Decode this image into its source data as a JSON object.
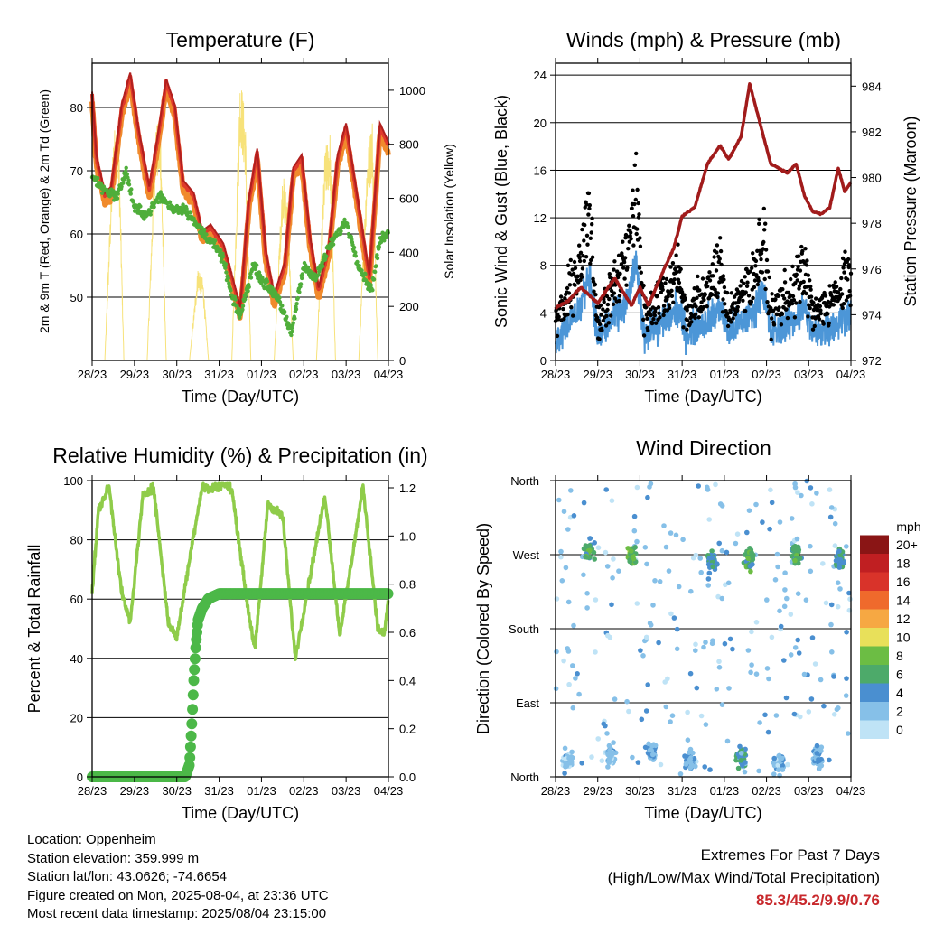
{
  "colors": {
    "temp_9m": "#e03a2b",
    "temp_2m": "#f08a2c",
    "temp_dark": "#b0201f",
    "dewpoint": "#4fae3a",
    "solar": "#f7e27a",
    "wind": "#4c96d7",
    "gust": "#000000",
    "pressure": "#a11b1b",
    "rh": "#8fcc4a",
    "precip": "#4cb848",
    "extremes_value": "#c8282c"
  },
  "time_axis": {
    "ticks": [
      "28/23",
      "29/23",
      "30/23",
      "31/23",
      "01/23",
      "02/23",
      "03/23",
      "04/23"
    ],
    "label": "Time (Day/UTC)"
  },
  "temperature_panel": {
    "title": "Temperature (F)",
    "left_label": "2m & 9m T (Red, Orange) & 2m Td (Green)",
    "right_label": "Solar Insolation (Yellow)",
    "left_ticks": [
      "50",
      "60",
      "70",
      "80"
    ],
    "right_ticks": [
      "0",
      "200",
      "400",
      "600",
      "800",
      "1000"
    ]
  },
  "winds_panel": {
    "title": "Winds (mph) & Pressure (mb)",
    "left_label": "Sonic Wind & Gust (Blue, Black)",
    "right_label": "Station Pressure (Maroon)",
    "left_ticks": [
      "0",
      "4",
      "8",
      "12",
      "16",
      "20",
      "24"
    ],
    "right_ticks": [
      "972",
      "974",
      "976",
      "978",
      "980",
      "982",
      "984"
    ]
  },
  "humidity_panel": {
    "title": "Relative Humidity (%) & Precipitation (in)",
    "left_label": "Percent & Total Rainfall",
    "left_ticks": [
      "0",
      "20",
      "40",
      "60",
      "80",
      "100"
    ],
    "right_ticks": [
      "0.0",
      "0.2",
      "0.4",
      "0.6",
      "0.8",
      "1.0",
      "1.2"
    ]
  },
  "direction_panel": {
    "title": "Wind Direction",
    "left_label": "Direction (Colored By Speed)",
    "dir_ticks": [
      "North",
      "East",
      "South",
      "West",
      "North"
    ],
    "legend_title": "mph",
    "legend_labels": [
      "0",
      "2",
      "4",
      "6",
      "8",
      "10",
      "12",
      "14",
      "16",
      "18",
      "20+"
    ],
    "legend_colors": [
      "#bfe3f6",
      "#86c0e8",
      "#4a8fd0",
      "#4daa6a",
      "#6cbd44",
      "#e8e05a",
      "#f6a843",
      "#ef6a2c",
      "#d9332a",
      "#c01f22",
      "#8a1515"
    ]
  },
  "station_info": {
    "location": "Location: Oppenheim",
    "elevation": "Station elevation: 359.999 m",
    "latlon": "Station lat/lon: 43.0626; -74.6654",
    "created": "Figure created on Mon, 2025-08-04, at 23:36 UTC",
    "recent": "Most recent data timestamp: 2025/08/04 23:15:00"
  },
  "extremes": {
    "title": "Extremes For Past 7 Days",
    "subtitle": "(High/Low/Max Wind/Total Precipitation)",
    "value": "85.3/45.2/9.9/0.76"
  },
  "chart_data": [
    {
      "type": "line",
      "title": "Temperature (F)",
      "xlabel": "Time (Day/UTC)",
      "ylabel": "2m & 9m T (Red, Orange) & 2m Td (Green)",
      "ylabel_right": "Solar Insolation (Yellow)",
      "x_unit": "days since 28/23",
      "xlim": [
        0,
        7
      ],
      "ylim": [
        40,
        87
      ],
      "ylim_right": [
        0,
        1100
      ],
      "series": [
        {
          "name": "2m & 9m T (Red, Orange)",
          "axis": "left",
          "x": [
            0,
            0.1,
            0.3,
            0.45,
            0.7,
            0.9,
            1.1,
            1.35,
            1.55,
            1.75,
            1.95,
            2.15,
            2.4,
            2.6,
            2.8,
            3.1,
            3.5,
            3.7,
            3.9,
            4.1,
            4.3,
            4.55,
            4.75,
            4.95,
            5.15,
            5.35,
            5.6,
            5.8,
            6.0,
            6.3,
            6.55,
            6.8,
            7.0
          ],
          "y": [
            82,
            72,
            66,
            67,
            80,
            85,
            76,
            67,
            75,
            84,
            80,
            68,
            66,
            60,
            61,
            58,
            48,
            65,
            73,
            57,
            50,
            55,
            70,
            72,
            59,
            51,
            58,
            72,
            77,
            64,
            53,
            77,
            74
          ]
        },
        {
          "name": "2m Td (Green)",
          "axis": "left",
          "x": [
            0,
            0.3,
            0.6,
            0.8,
            1.0,
            1.3,
            1.6,
            1.9,
            2.2,
            2.5,
            2.8,
            3.1,
            3.3,
            3.5,
            3.8,
            4.1,
            4.4,
            4.7,
            5.0,
            5.3,
            5.6,
            6.0,
            6.3,
            6.6,
            6.8,
            7.0
          ],
          "y": [
            69,
            67,
            66,
            70,
            64,
            63,
            66,
            64,
            64,
            61,
            59,
            56,
            50,
            47,
            55,
            52,
            50,
            44,
            55,
            53,
            58,
            62,
            55,
            51,
            59,
            60
          ]
        },
        {
          "name": "Solar Insolation (Yellow)",
          "axis": "right",
          "x": [
            0.3,
            0.5,
            0.62,
            0.75,
            1.3,
            1.5,
            1.62,
            1.75,
            2.3,
            2.5,
            2.62,
            2.75,
            3.3,
            3.5,
            3.62,
            3.75,
            4.3,
            4.5,
            4.62,
            4.75,
            5.3,
            5.5,
            5.62,
            5.75,
            6.3,
            6.5,
            6.62,
            6.75
          ],
          "y": [
            0,
            850,
            900,
            0,
            0,
            900,
            850,
            0,
            0,
            350,
            300,
            0,
            0,
            1070,
            900,
            0,
            0,
            700,
            600,
            0,
            0,
            780,
            850,
            0,
            0,
            780,
            900,
            0
          ]
        }
      ]
    },
    {
      "type": "line",
      "title": "Winds (mph) & Pressure (mb)",
      "xlabel": "Time (Day/UTC)",
      "ylabel": "Sonic Wind & Gust (Blue, Black)",
      "ylabel_right": "Station Pressure (Maroon)",
      "x_unit": "days since 28/23",
      "xlim": [
        0,
        7
      ],
      "ylim": [
        0,
        25
      ],
      "ylim_right": [
        972,
        985
      ],
      "series": [
        {
          "name": "Station Pressure (Maroon)",
          "axis": "right",
          "x": [
            0,
            0.3,
            0.6,
            1.0,
            1.4,
            1.8,
            2.0,
            2.2,
            2.5,
            2.8,
            3.0,
            3.3,
            3.6,
            3.9,
            4.1,
            4.4,
            4.6,
            4.9,
            5.1,
            5.3,
            5.5,
            5.7,
            5.9,
            6.1,
            6.3,
            6.5,
            6.7,
            6.85,
            7.0
          ],
          "y": [
            974.3,
            974.6,
            975.2,
            974.5,
            975.6,
            974.4,
            975.2,
            974.4,
            975.7,
            976.9,
            978.3,
            978.7,
            980.6,
            981.4,
            980.8,
            981.8,
            984.1,
            982.0,
            980.6,
            980.4,
            980.2,
            980.6,
            979.2,
            978.5,
            978.4,
            978.7,
            980.4,
            979.4,
            979.8
          ]
        },
        {
          "name": "Sonic Wind & Gust (Blue, Black)",
          "axis": "left",
          "x": [
            0,
            0.6,
            0.8,
            1.0,
            1.7,
            1.9,
            2.1,
            2.7,
            2.9,
            3.1,
            3.7,
            3.9,
            4.1,
            4.7,
            4.9,
            5.1,
            5.7,
            5.9,
            6.1,
            6.7,
            6.9
          ],
          "y": [
            4,
            10,
            17,
            4,
            11,
            18,
            5,
            8,
            10,
            5,
            8,
            10,
            5,
            9,
            14,
            5,
            8,
            10,
            5,
            7,
            9
          ]
        }
      ]
    },
    {
      "type": "line",
      "title": "Relative Humidity (%) & Precipitation (in)",
      "xlabel": "Time (Day/UTC)",
      "ylabel": "Percent & Total Rainfall",
      "x_unit": "days since 28/23",
      "xlim": [
        0,
        7
      ],
      "ylim": [
        0,
        100
      ],
      "ylim_right": [
        0,
        1.23
      ],
      "series": [
        {
          "name": "Relative Humidity",
          "axis": "left",
          "x": [
            0,
            0.15,
            0.4,
            0.7,
            0.9,
            1.2,
            1.45,
            1.8,
            2.0,
            2.4,
            2.6,
            2.8,
            3.1,
            3.3,
            3.7,
            3.85,
            4.15,
            4.5,
            4.8,
            5.05,
            5.5,
            5.85,
            6.1,
            6.4,
            6.75,
            6.9,
            7.0
          ],
          "y": [
            62,
            90,
            98,
            62,
            52,
            95,
            98,
            52,
            47,
            82,
            98,
            97,
            99,
            97,
            55,
            43,
            92,
            88,
            40,
            60,
            95,
            48,
            70,
            98,
            50,
            48,
            60
          ]
        },
        {
          "name": "Total Rainfall",
          "axis": "right",
          "x": [
            0,
            2.2,
            2.3,
            2.35,
            2.4,
            2.45,
            2.5,
            2.6,
            2.75,
            3.0,
            7.0
          ],
          "y": [
            0,
            0,
            0.05,
            0.2,
            0.4,
            0.55,
            0.65,
            0.7,
            0.74,
            0.76,
            0.76
          ]
        }
      ]
    },
    {
      "type": "scatter",
      "title": "Wind Direction",
      "xlabel": "Time (Day/UTC)",
      "ylabel": "Direction (Colored By Speed)",
      "x_unit": "days since 28/23",
      "xlim": [
        0,
        7
      ],
      "y_categories": [
        "North",
        "East",
        "South",
        "West",
        "North"
      ],
      "ylim_degrees": [
        0,
        360
      ],
      "color_scale_mph": [
        0,
        2,
        4,
        6,
        8,
        10,
        12,
        14,
        16,
        18,
        20
      ],
      "clusters": [
        {
          "x_center": 0.8,
          "direction_deg": 275,
          "speed_mph": 6
        },
        {
          "x_center": 1.8,
          "direction_deg": 270,
          "speed_mph": 7
        },
        {
          "x_center": 3.7,
          "direction_deg": 260,
          "speed_mph": 5
        },
        {
          "x_center": 4.6,
          "direction_deg": 265,
          "speed_mph": 6
        },
        {
          "x_center": 5.7,
          "direction_deg": 270,
          "speed_mph": 6
        },
        {
          "x_center": 6.75,
          "direction_deg": 265,
          "speed_mph": 5
        },
        {
          "x_center": 0.3,
          "direction_deg": 20,
          "speed_mph": 2
        },
        {
          "x_center": 1.3,
          "direction_deg": 25,
          "speed_mph": 2
        },
        {
          "x_center": 2.3,
          "direction_deg": 30,
          "speed_mph": 3
        },
        {
          "x_center": 3.2,
          "direction_deg": 20,
          "speed_mph": 3
        },
        {
          "x_center": 4.4,
          "direction_deg": 25,
          "speed_mph": 4
        },
        {
          "x_center": 5.3,
          "direction_deg": 20,
          "speed_mph": 2
        },
        {
          "x_center": 6.2,
          "direction_deg": 25,
          "speed_mph": 3
        }
      ]
    }
  ]
}
